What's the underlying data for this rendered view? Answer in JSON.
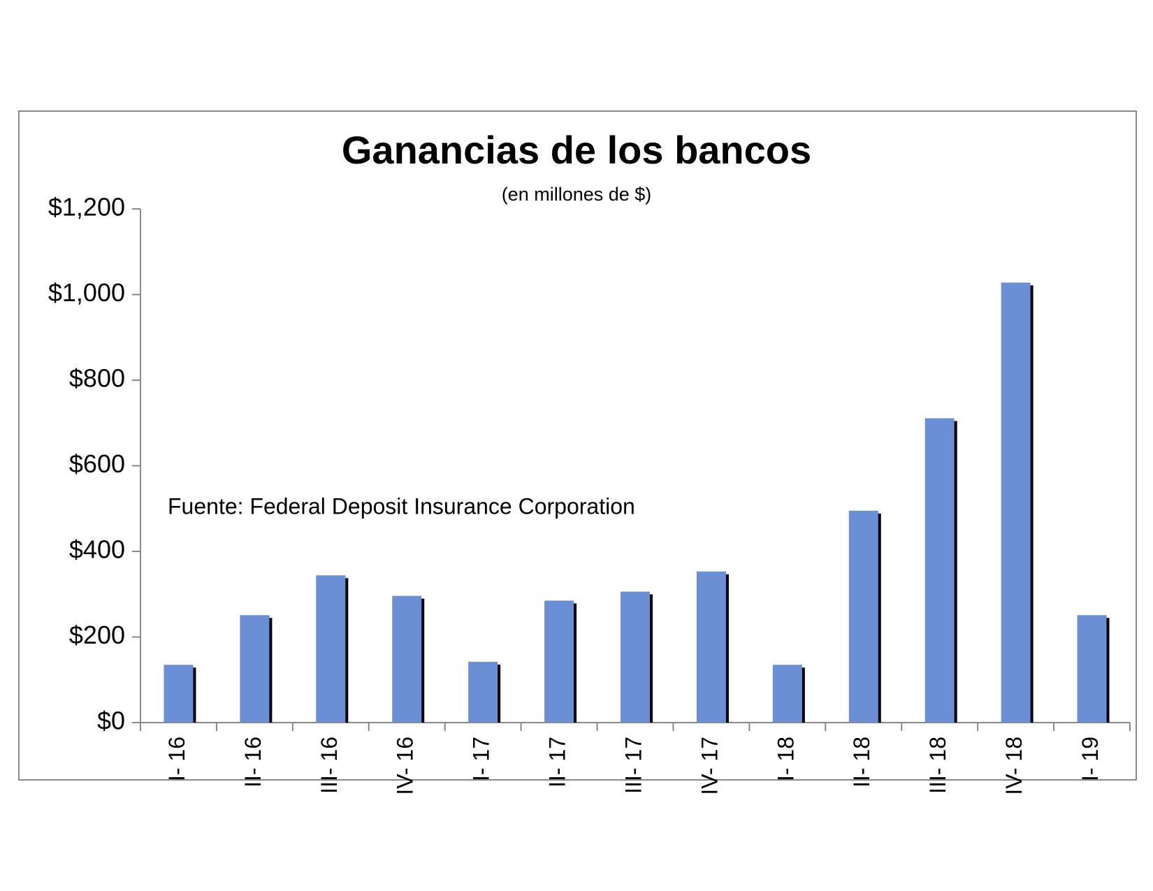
{
  "chart_data": {
    "type": "bar",
    "title": "Ganancias de los bancos",
    "subtitle": "(en millones de $)",
    "annotation": "Fuente: Federal Deposit Insurance Corporation",
    "categories": [
      "I- 16",
      "II- 16",
      "III- 16",
      "IV- 16",
      "I- 17",
      "II- 17",
      "III- 17",
      "IV- 17",
      "I- 18",
      "II- 18",
      "III- 18",
      "IV- 18",
      "I- 19"
    ],
    "values": [
      135,
      251,
      344,
      296,
      142,
      285,
      306,
      353,
      135,
      495,
      711,
      1028,
      251
    ],
    "color": "#6a8fd5",
    "shadow_color": "#000000",
    "ylim": [
      0,
      1200
    ],
    "yticks": [
      {
        "value": 0,
        "label": "$0"
      },
      {
        "value": 200,
        "label": "$200"
      },
      {
        "value": 400,
        "label": "$400"
      },
      {
        "value": 600,
        "label": "$600"
      },
      {
        "value": 800,
        "label": "$800"
      },
      {
        "value": 1000,
        "label": "$1,000"
      },
      {
        "value": 1200,
        "label": "$1,200"
      }
    ],
    "grid": false
  }
}
